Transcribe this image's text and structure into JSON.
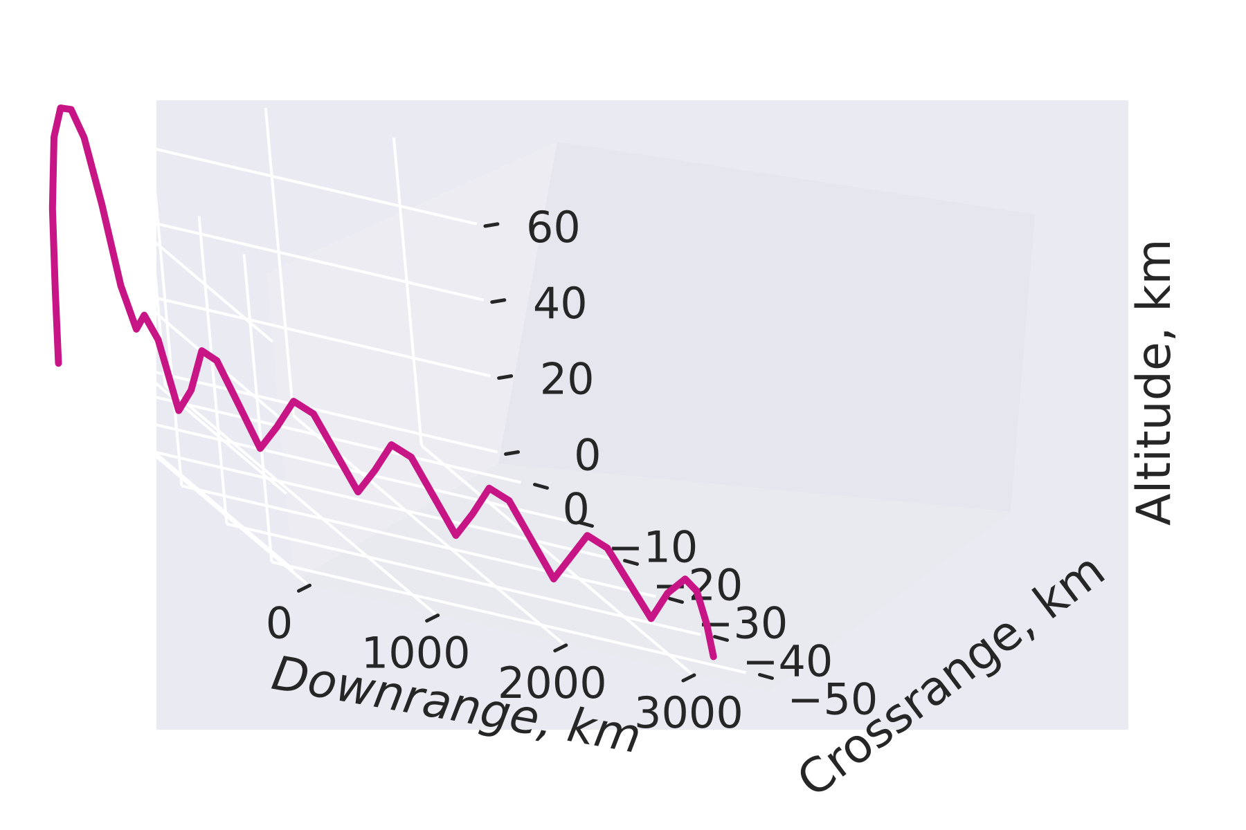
{
  "chart_data": {
    "type": "line",
    "title": "",
    "projection": "3d",
    "xlabel": "Downrange, km",
    "ylabel": "Crossrange, km",
    "zlabel": "Altitude, km",
    "xlim": [
      -100,
      3600
    ],
    "ylim": [
      -55,
      5
    ],
    "zlim": [
      -3,
      78
    ],
    "xticks": [
      "0",
      "1000",
      "2000",
      "3000"
    ],
    "yticks": [
      "0",
      "−10",
      "−20",
      "−30",
      "−40",
      "−50"
    ],
    "zticks": [
      "0",
      "20",
      "40",
      "60"
    ],
    "grid": true,
    "colors": {
      "line": "#c71585",
      "pane": "#eaeaf2",
      "grid": "#ffffff",
      "text": "#262626"
    },
    "series": [
      {
        "x": [
          0,
          10,
          30,
          60,
          100,
          150,
          200,
          260,
          320,
          380,
          420,
          480,
          560,
          640,
          720,
          800,
          900,
          1000,
          1100,
          1200,
          1300,
          1400,
          1500,
          1600,
          1700,
          1800,
          1900,
          2000,
          2100,
          2200,
          2300,
          2400,
          2500,
          2600,
          2700,
          2800,
          2900,
          3000,
          3100,
          3200,
          3260,
          3300,
          3320
        ],
        "y": [
          0,
          -0.5,
          -1,
          -2,
          -3,
          -4,
          -5,
          -6,
          -7,
          -8,
          -9,
          -10,
          -11,
          -12,
          -13,
          -14,
          -15,
          -16.5,
          -18,
          -19.5,
          -21,
          -22.5,
          -24,
          -25.5,
          -27,
          -28.5,
          -30,
          -31.5,
          -33,
          -34.5,
          -36,
          -37.5,
          -39,
          -40.5,
          -42,
          -43.5,
          -45,
          -46.5,
          -48,
          -49.5,
          -50.2,
          -50.7,
          -51
        ],
        "z": [
          0,
          20,
          42,
          62,
          71,
          72,
          66,
          50,
          30,
          20,
          25,
          20,
          3,
          10,
          22,
          21,
          12,
          2,
          10,
          19,
          18,
          10,
          2,
          10,
          19,
          18,
          10,
          2,
          10,
          19,
          18,
          10,
          2,
          10,
          18,
          17,
          10,
          3,
          12,
          18,
          16,
          8,
          0
        ]
      }
    ]
  }
}
